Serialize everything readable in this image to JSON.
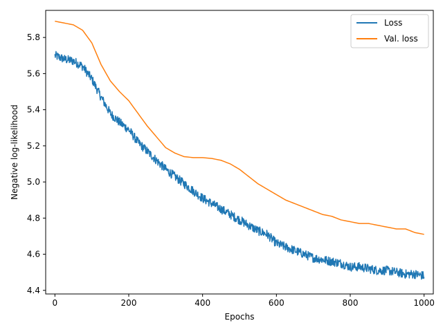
{
  "chart_data": {
    "type": "line",
    "title": "",
    "xlabel": "Epochs",
    "ylabel": "Negative log-likelihood",
    "xlim": [
      -25,
      1025
    ],
    "ylim": [
      4.38,
      5.95
    ],
    "xticks": [
      0,
      200,
      400,
      600,
      800,
      1000
    ],
    "yticks": [
      4.4,
      4.6,
      4.8,
      5.0,
      5.2,
      5.4,
      5.6,
      5.8
    ],
    "xtick_labels": [
      "0",
      "200",
      "400",
      "600",
      "800",
      "1000"
    ],
    "ytick_labels": [
      "4.4",
      "4.6",
      "4.8",
      "5.0",
      "5.2",
      "5.4",
      "5.6",
      "5.8"
    ],
    "grid": false,
    "legend_position": "top-right",
    "series": [
      {
        "name": "Loss",
        "color": "#1f77b4",
        "noisy": true,
        "x": [
          0,
          25,
          50,
          75,
          100,
          125,
          150,
          175,
          200,
          225,
          250,
          275,
          300,
          325,
          350,
          375,
          400,
          425,
          450,
          475,
          500,
          525,
          550,
          575,
          600,
          625,
          650,
          675,
          700,
          725,
          750,
          775,
          800,
          825,
          850,
          875,
          900,
          925,
          950,
          975,
          1000
        ],
        "y": [
          5.7,
          5.68,
          5.67,
          5.64,
          5.57,
          5.47,
          5.38,
          5.33,
          5.29,
          5.22,
          5.17,
          5.12,
          5.07,
          5.03,
          4.99,
          4.95,
          4.91,
          4.88,
          4.85,
          4.82,
          4.79,
          4.76,
          4.73,
          4.71,
          4.66,
          4.64,
          4.62,
          4.6,
          4.58,
          4.57,
          4.56,
          4.55,
          4.53,
          4.53,
          4.52,
          4.51,
          4.51,
          4.5,
          4.49,
          4.49,
          4.48
        ]
      },
      {
        "name": "Val. loss",
        "color": "#ff7f0e",
        "noisy": false,
        "x": [
          0,
          25,
          50,
          75,
          100,
          125,
          150,
          175,
          200,
          225,
          250,
          275,
          300,
          325,
          350,
          375,
          400,
          425,
          450,
          475,
          500,
          525,
          550,
          575,
          600,
          625,
          650,
          675,
          700,
          725,
          750,
          775,
          800,
          825,
          850,
          875,
          900,
          925,
          950,
          975,
          1000
        ],
        "y": [
          5.89,
          5.88,
          5.87,
          5.84,
          5.77,
          5.65,
          5.56,
          5.5,
          5.45,
          5.38,
          5.31,
          5.25,
          5.19,
          5.16,
          5.14,
          5.135,
          5.135,
          5.13,
          5.12,
          5.1,
          5.07,
          5.03,
          4.99,
          4.96,
          4.93,
          4.9,
          4.88,
          4.86,
          4.84,
          4.82,
          4.81,
          4.79,
          4.78,
          4.77,
          4.77,
          4.76,
          4.75,
          4.74,
          4.74,
          4.72,
          4.71
        ]
      }
    ]
  }
}
